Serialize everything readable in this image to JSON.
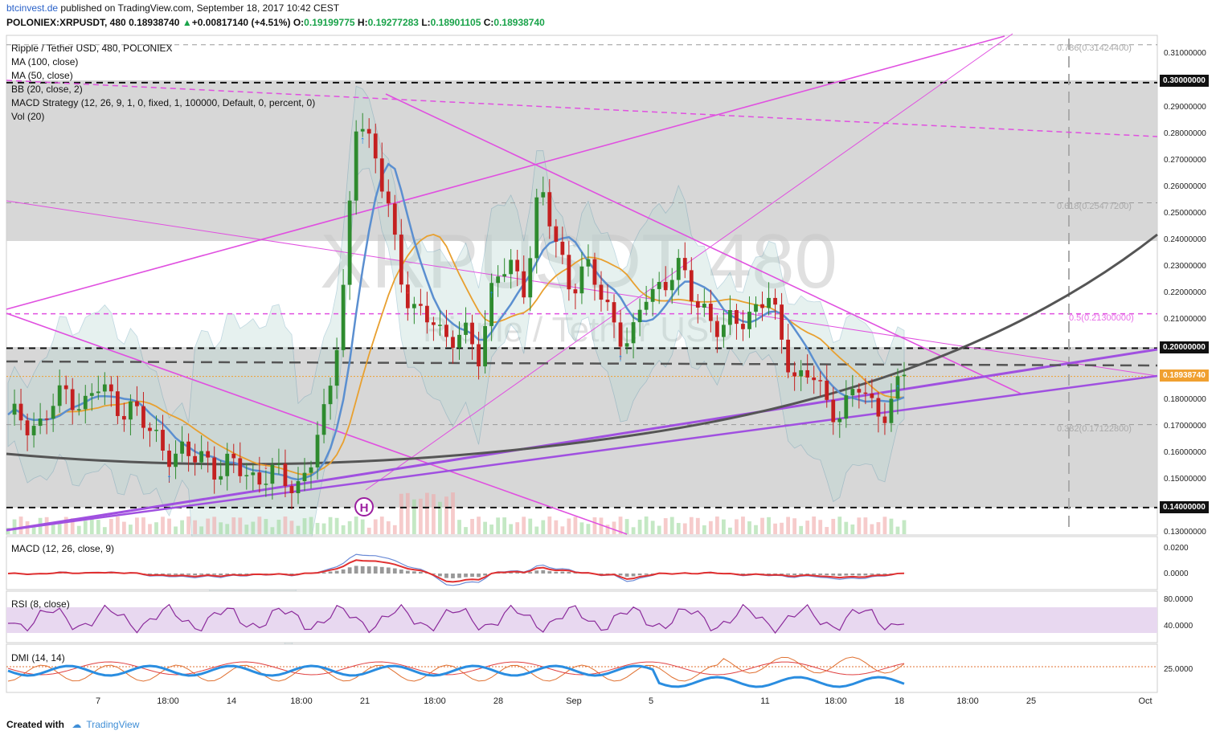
{
  "header": {
    "site": "btcinvest.de",
    "publish_text": " published on TradingView.com, September 18, 2017 10:42 CEST",
    "symbol": "POLONIEX:XRPUSDT, 480",
    "last_price": "0.18938740",
    "change": "+0.00817140 (+4.51%)",
    "open_label": "O:",
    "open": "0.19199775",
    "high_label": "H:",
    "high": "0.19277283",
    "low_label": "L:",
    "low": "0.18901105",
    "close_label": "C:",
    "close": "0.18938740"
  },
  "legend": [
    "Ripple / Tether USD, 480, POLONIEX",
    "MA (100, close)",
    "MA (50, close)",
    "BB (20, close, 2)",
    "MACD Strategy (12, 26, 9, 1, 0, fixed, 1, 100000, Default, 0, percent, 0)",
    "Vol (20)"
  ],
  "watermark": {
    "symbol": "XRPUSDT 480",
    "name": "Ripple / Tether USD"
  },
  "price_axis": {
    "ticks": [
      "0.31000000",
      "0.29000000",
      "0.28000000",
      "0.27000000",
      "0.26000000",
      "0.25000000",
      "0.24000000",
      "0.23000000",
      "0.22000000",
      "0.21000000",
      "0.18000000",
      "0.17000000",
      "0.16000000",
      "0.15000000",
      "0.13000000"
    ],
    "highlighted": [
      "0.30000000",
      "0.20000000",
      "0.14000000"
    ],
    "current": "0.18938740"
  },
  "fib_labels": {
    "f786": "0.786(0.31424400)",
    "f618": "0.618(0.25477200)",
    "f5": "0.5(0.21300000)",
    "f382": "0.382(0.17122800)"
  },
  "panes": {
    "macd": {
      "label": "MACD (12, 26, close, 9)",
      "ticks": [
        "0.0200",
        "0.0000"
      ]
    },
    "rsi": {
      "label": "RSI (8, close)",
      "ticks": [
        "80.0000",
        "40.0000"
      ]
    },
    "dmi": {
      "label": "DMI (14, 14)",
      "ticks": [
        "25.0000"
      ]
    }
  },
  "time_axis": [
    "7",
    "18:00",
    "14",
    "18:00",
    "21",
    "18:00",
    "28",
    "Sep",
    "5",
    "11",
    "18:00",
    "18",
    "18:00",
    "25",
    "Oct"
  ],
  "marker": {
    "label": "H"
  },
  "colors": {
    "bull": "#2e8b2e",
    "bear": "#c42020",
    "ma100": "#555555",
    "ma50": "#e8a030",
    "bb": "#4a8fa8",
    "macd_line": "#6a8ad6",
    "signal": "#e03030",
    "rsi": "#8b2a9b",
    "dmi_plus": "#2a8de0",
    "dmi_minus": "#e07030",
    "trend": "#e050e0",
    "support": "#a050e0"
  },
  "footer": {
    "created": "Created with",
    "brand": "TradingView"
  },
  "chart_data": {
    "type": "candlestick",
    "title": "Ripple / Tether USD, 480, POLONIEX",
    "ylim": [
      0.13,
      0.316
    ],
    "horizontal_levels": [
      0.3,
      0.2,
      0.14
    ],
    "fib_levels": [
      0.314244,
      0.254772,
      0.213,
      0.171228
    ],
    "close_path": [
      0.172,
      0.175,
      0.17,
      0.178,
      0.185,
      0.178,
      0.185,
      0.18,
      0.178,
      0.17,
      0.165,
      0.16,
      0.158,
      0.16,
      0.154,
      0.155,
      0.152,
      0.153,
      0.15,
      0.148,
      0.16,
      0.175,
      0.22,
      0.29,
      0.27,
      0.26,
      0.22,
      0.21,
      0.215,
      0.2,
      0.205,
      0.2,
      0.225,
      0.23,
      0.225,
      0.26,
      0.24,
      0.225,
      0.23,
      0.22,
      0.21,
      0.2,
      0.22,
      0.225,
      0.23,
      0.22,
      0.215,
      0.205,
      0.21,
      0.215,
      0.22,
      0.2,
      0.19,
      0.19,
      0.175,
      0.18,
      0.185,
      0.175,
      0.18,
      0.19
    ],
    "current_price": 0.1893874
  }
}
